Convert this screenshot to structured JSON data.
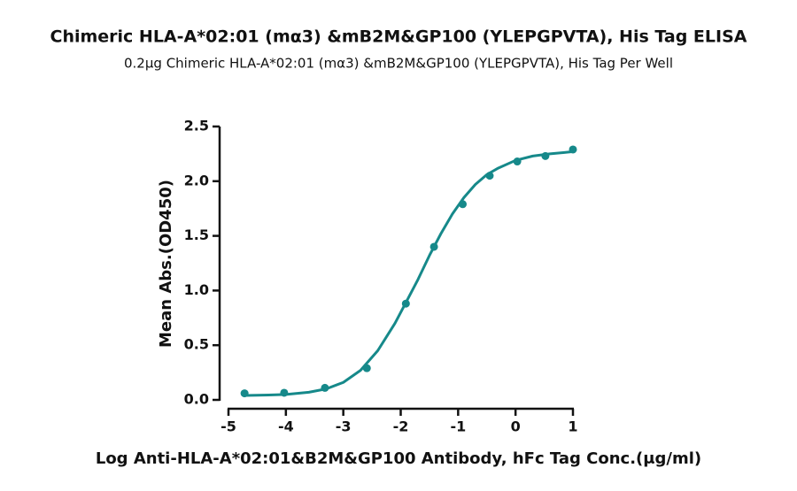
{
  "chart_data": {
    "type": "scatter",
    "title": "Chimeric HLA-A*02:01 (mα3) &mB2M&GP100 (YLEPGPVTA), His Tag ELISA",
    "subtitle": "0.2μg Chimeric HLA-A*02:01 (mα3) &mB2M&GP100 (YLEPGPVTA), His Tag Per Well",
    "x_label": "Log Anti-HLA-A*02:01&B2M&GP100 Antibody, hFc Tag Conc.(μg/ml)",
    "y_label": "Mean Abs.(OD450)",
    "xlim": [
      -5,
      1
    ],
    "xticks": [
      -5,
      -4,
      -3,
      -2,
      -1,
      0,
      1
    ],
    "ylim": [
      0,
      2.5
    ],
    "yticks": [
      {
        "value": 0,
        "label": "0.0"
      },
      0.5,
      {
        "value": 1,
        "label": "1.0"
      },
      1.5,
      {
        "value": 2,
        "label": "2.0"
      },
      2.5
    ],
    "series": [
      {
        "color": "#16898a",
        "mode": "markers",
        "x": [
          -4.72,
          -4.03,
          -3.32,
          -2.59,
          -1.91,
          -1.42,
          -0.92,
          -0.45,
          0.03,
          0.52,
          1.0
        ],
        "values": [
          0.06,
          0.065,
          0.11,
          0.29,
          0.88,
          1.4,
          1.79,
          2.05,
          2.18,
          2.23,
          2.29
        ]
      },
      {
        "color": "#16898a",
        "mode": "line",
        "x": [
          -4.7,
          -4.3,
          -4.0,
          -3.6,
          -3.3,
          -3.0,
          -2.7,
          -2.4,
          -2.1,
          -1.9,
          -1.7,
          -1.5,
          -1.3,
          -1.1,
          -0.9,
          -0.7,
          -0.5,
          -0.3,
          0.0,
          0.3,
          0.6,
          1.0
        ],
        "values": [
          0.04,
          0.045,
          0.05,
          0.07,
          0.1,
          0.16,
          0.27,
          0.45,
          0.7,
          0.9,
          1.1,
          1.32,
          1.52,
          1.7,
          1.85,
          1.97,
          2.06,
          2.12,
          2.19,
          2.23,
          2.25,
          2.27
        ]
      }
    ]
  }
}
